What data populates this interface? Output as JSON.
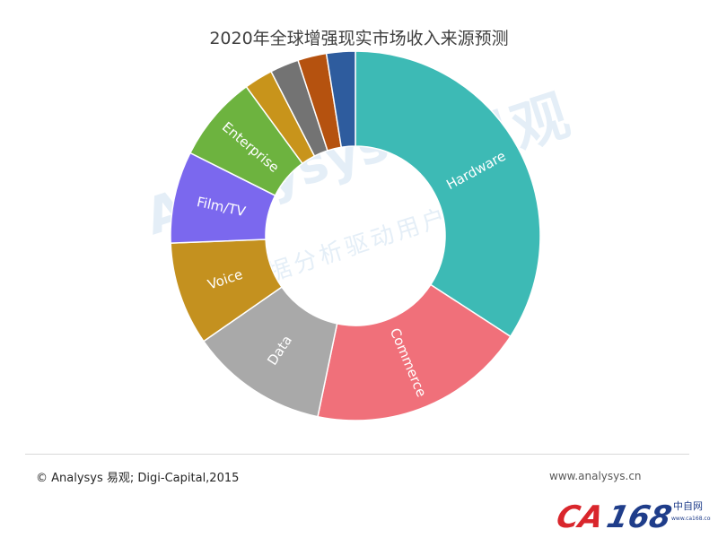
{
  "title": "2020年全球增强现实市场收入来源预测",
  "source_note": "© Analysys 易观; Digi-Capital,2015",
  "website": "www.analysys.cn",
  "watermark": {
    "brand": "Analysys",
    "cn_name": "易观",
    "slogan": "大数据分析驱动用户成长"
  },
  "logo": {
    "brand": "CA168",
    "cn": "中自网",
    "url": "www.ca168.com"
  },
  "colors": {
    "Hardware": "#3dbab5",
    "Commerce": "#f0707a",
    "Data": "#a9a9a9",
    "Voice": "#c4911f",
    "Film/TV": "#7b68ee",
    "Enterprise": "#6db33f",
    "slice7": "#c8941b",
    "slice8": "#737373",
    "slice9": "#b5520f",
    "slice10": "#2e5c9e"
  },
  "chart_data": {
    "type": "pie",
    "donut": true,
    "title": "2020年全球增强现实市场收入来源预测",
    "categories": [
      "Hardware",
      "Commerce",
      "Data",
      "Voice",
      "Film/TV",
      "Enterprise",
      "",
      "",
      "",
      ""
    ],
    "values": [
      34,
      19,
      12,
      9,
      8,
      7.5,
      2.5,
      2.5,
      2.5,
      2.5
    ],
    "colors": [
      "#3dbab5",
      "#f0707a",
      "#a9a9a9",
      "#c4911f",
      "#7b68ee",
      "#6db33f",
      "#c8941b",
      "#737373",
      "#b5520f",
      "#2e5c9e"
    ],
    "start_angle_deg": 0,
    "direction": "clockwise"
  }
}
